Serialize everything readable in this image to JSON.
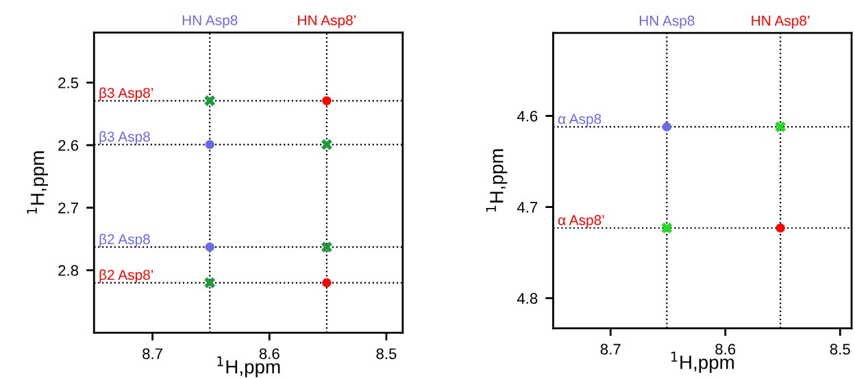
{
  "chart_data": [
    {
      "type": "scatter",
      "xlabel": "$^{1}$H,ppm",
      "ylabel": "$^{1}$H,ppm",
      "xlim": [
        8.75,
        8.486
      ],
      "ylim": [
        2.9,
        2.42
      ],
      "xticks": [
        8.7,
        8.6,
        8.5
      ],
      "yticks": [
        2.5,
        2.6,
        2.7,
        2.8
      ],
      "grid": false,
      "series": [
        {
          "color": "#6a6ae6",
          "marker": "circle",
          "x": [
            8.651,
            8.651
          ],
          "values": [
            2.599,
            2.763
          ]
        },
        {
          "color": "#ff0000",
          "marker": "circle",
          "x": [
            8.551,
            8.551
          ],
          "values": [
            2.529,
            2.82
          ]
        },
        {
          "color": "#1f9a3a",
          "marker": "cross",
          "x": [
            8.651,
            8.551,
            8.551,
            8.651
          ],
          "values": [
            2.529,
            2.599,
            2.763,
            2.82
          ]
        }
      ],
      "ref_lines": [
        {
          "axis": "x",
          "value": 8.651,
          "label": "HN Asp8",
          "color": "#000000",
          "line_style": "dotted"
        },
        {
          "axis": "x",
          "value": 8.551,
          "label": "HN Asp8’",
          "color": "#000000",
          "line_style": "dotted"
        },
        {
          "axis": "y",
          "value": 2.529,
          "label": "β3 Asp8’",
          "color": "#000000",
          "line_style": "dotted"
        },
        {
          "axis": "y",
          "value": 2.599,
          "label": "β3 Asp8",
          "color": "#000000",
          "line_style": "dotted"
        },
        {
          "axis": "y",
          "value": 2.763,
          "label": "β2 Asp8",
          "color": "#000000",
          "line_style": "dotted"
        },
        {
          "axis": "y",
          "value": 2.82,
          "label": "β2 Asp8’",
          "color": "#000000",
          "line_style": "dotted"
        }
      ]
    },
    {
      "type": "scatter",
      "xlabel": "$^{1}$H,ppm",
      "ylabel": "$^{1}$H,ppm",
      "xlim": [
        8.75,
        8.49
      ],
      "ylim": [
        4.833,
        4.509
      ],
      "xticks": [
        8.7,
        8.6,
        8.5
      ],
      "yticks": [
        4.6,
        4.7,
        4.8
      ],
      "grid": false,
      "series": [
        {
          "color": "#6a6ae6",
          "marker": "circle",
          "x": [
            8.651
          ],
          "values": [
            4.612
          ]
        },
        {
          "color": "#ff0000",
          "marker": "circle",
          "x": [
            8.552
          ],
          "values": [
            4.723
          ]
        },
        {
          "color": "#22dd22",
          "marker": "cross",
          "x": [
            8.552,
            8.651
          ],
          "values": [
            4.612,
            4.723
          ]
        }
      ],
      "ref_lines": [
        {
          "axis": "x",
          "value": 8.651,
          "label": "HN Asp8",
          "color": "#000000",
          "line_style": "dotted"
        },
        {
          "axis": "x",
          "value": 8.552,
          "label": "HN Asp8’",
          "color": "#000000",
          "line_style": "dotted"
        },
        {
          "axis": "y",
          "value": 4.612,
          "label": "α Asp8",
          "color": "#000000",
          "line_style": "dotted"
        },
        {
          "axis": "y",
          "value": 4.723,
          "label": "α Asp8’",
          "color": "#000000",
          "line_style": "dotted"
        }
      ]
    }
  ]
}
